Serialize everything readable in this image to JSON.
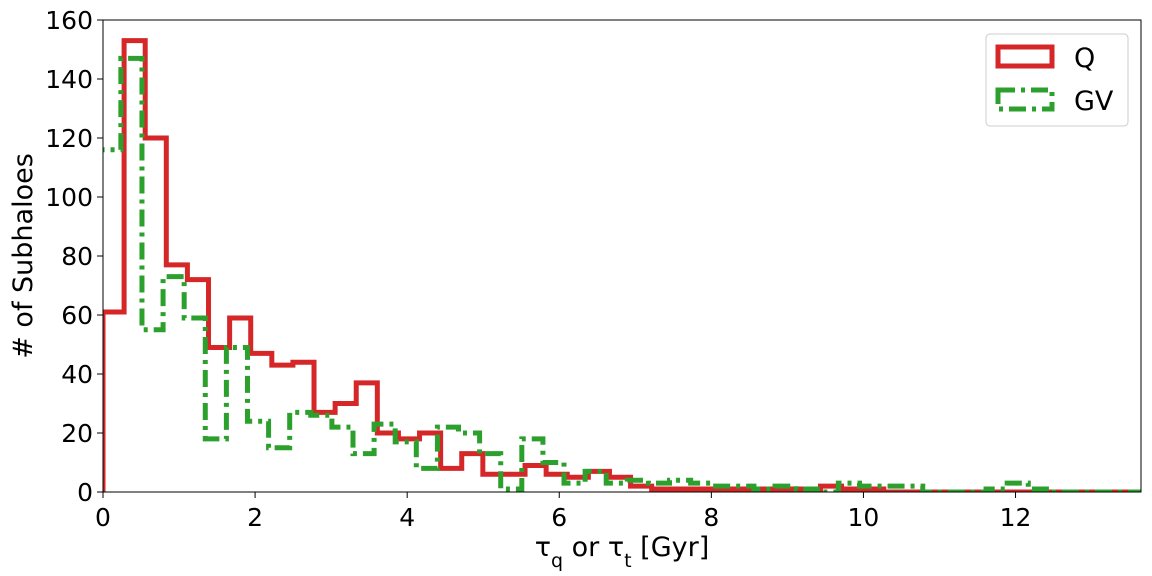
{
  "chart_data": {
    "type": "step-histogram",
    "xlabel": "τq or τt [Gyr]",
    "ylabel": "# of Subhaloes",
    "xlim": [
      0,
      13.65
    ],
    "ylim": [
      0,
      160
    ],
    "xticks": [
      0,
      2,
      4,
      6,
      8,
      10,
      12
    ],
    "yticks": [
      0,
      20,
      40,
      60,
      80,
      100,
      120,
      140,
      160
    ],
    "grid": false,
    "legend_position": "top-right",
    "bin_width": 0.2775,
    "series": [
      {
        "name": "Q",
        "color": "#d62728",
        "style": "solid",
        "bin_start": 0,
        "values": [
          61,
          153,
          120,
          77,
          72,
          49,
          59,
          47,
          43,
          44,
          27,
          30,
          37,
          20,
          18,
          20,
          8,
          13,
          6,
          6,
          9,
          6,
          5,
          7,
          5,
          2,
          1,
          1,
          1,
          1,
          1,
          1,
          1,
          1,
          2,
          1,
          1,
          0,
          0,
          0,
          0,
          0,
          0,
          0,
          0,
          0,
          0,
          0,
          0
        ]
      },
      {
        "name": "GV",
        "color": "#2ca02c",
        "style": "dashdot",
        "bin_start": -0.0425,
        "values": [
          116,
          147,
          55,
          73,
          59,
          18,
          49,
          24,
          15,
          27,
          26,
          22,
          13,
          23,
          17,
          8,
          22,
          20,
          13,
          1,
          18,
          10,
          3,
          7,
          3,
          4,
          3,
          4,
          3,
          2,
          2,
          1,
          2,
          1,
          0,
          3,
          2,
          2,
          2,
          0,
          0,
          0,
          1,
          3,
          1,
          0,
          0,
          0,
          0,
          0
        ]
      }
    ]
  }
}
